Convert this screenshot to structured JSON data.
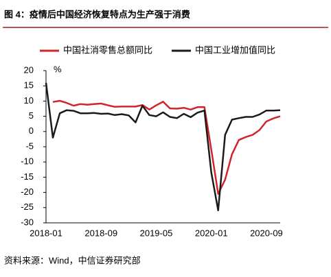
{
  "chart_data": {
    "type": "line",
    "title": "图 4：疫情后中国经济恢复特点为生产强于消费",
    "source": "资料来源：Wind，中信证券研究部",
    "unit": "%",
    "categories": [
      "2018-01",
      null,
      null,
      null,
      null,
      null,
      null,
      null,
      "2018-09",
      null,
      null,
      null,
      null,
      null,
      null,
      null,
      "2019-05",
      null,
      null,
      null,
      null,
      null,
      null,
      null,
      "2020-01",
      null,
      null,
      null,
      null,
      null,
      null,
      null,
      "2020-09",
      null,
      null
    ],
    "series": [
      {
        "name": "中国社消零售总额同比",
        "color": "#d2232a",
        "values": [
          null,
          9.7,
          10.1,
          9.4,
          8.5,
          9.0,
          8.8,
          9.0,
          9.2,
          8.6,
          8.1,
          8.2,
          8.2,
          8.2,
          8.7,
          7.2,
          8.6,
          9.8,
          7.6,
          7.5,
          7.8,
          7.2,
          8.0,
          8.0,
          -6.0,
          -20.5,
          -15.8,
          -7.5,
          -2.8,
          -1.8,
          -1.1,
          0.5,
          3.3,
          4.3,
          5.0
        ]
      },
      {
        "name": "中国工业增加值同比",
        "color": "#1a1a1a",
        "values": [
          16.0,
          -2.0,
          6.0,
          7.0,
          6.8,
          6.0,
          6.0,
          6.1,
          5.8,
          5.9,
          5.4,
          5.7,
          5.3,
          3.0,
          8.5,
          5.4,
          5.0,
          6.3,
          4.8,
          4.4,
          5.8,
          4.7,
          6.2,
          6.9,
          -13.5,
          -25.9,
          -1.1,
          3.9,
          4.4,
          4.8,
          4.8,
          5.6,
          6.9,
          6.9,
          7.0
        ]
      }
    ],
    "ylim": [
      -30,
      20
    ],
    "yticks": [
      -30,
      -25,
      -20,
      -15,
      -10,
      -5,
      0,
      5,
      10,
      15,
      20
    ]
  }
}
